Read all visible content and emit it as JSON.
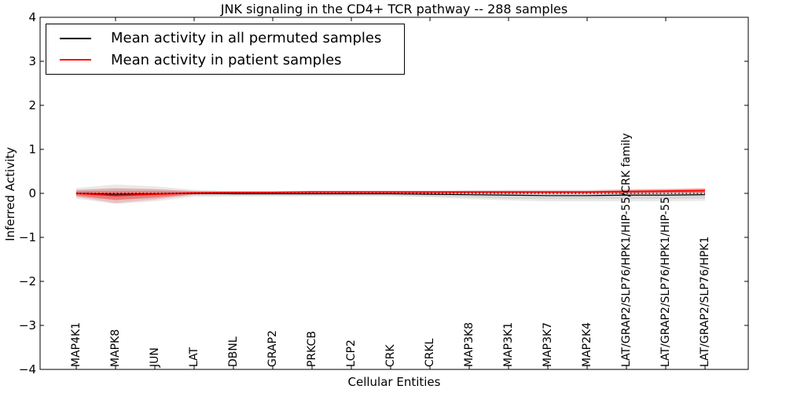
{
  "figure": {
    "title": "JNK signaling in the CD4+ TCR pathway -- 288 samples",
    "xlabel": "Cellular Entities",
    "ylabel": "Inferred Activity"
  },
  "legend": {
    "position": "upper left",
    "items": [
      {
        "label": "Mean activity in all permuted samples",
        "color": "#000000"
      },
      {
        "label": "Mean activity in patient samples",
        "color": "#ff0000"
      }
    ]
  },
  "chart_data": {
    "type": "line",
    "title": "JNK signaling in the CD4+ TCR pathway -- 288 samples",
    "xlabel": "Cellular Entities",
    "ylabel": "Inferred Activity",
    "ylim": [
      -4,
      4
    ],
    "yticks": [
      -4,
      -3,
      -2,
      -1,
      0,
      1,
      2,
      3,
      4
    ],
    "grid": false,
    "legend_position": "upper left",
    "categories": [
      "MAP4K1",
      "MAPK8",
      "JUN",
      "LAT",
      "DBNL",
      "GRAP2",
      "PRKCB",
      "LCP2",
      "CRK",
      "CRKL",
      "MAP3K8",
      "MAP3K1",
      "MAP3K7",
      "MAP2K4",
      "LAT/GRAP2/SLP76/HPK1/HIP-55/CRK family",
      "LAT/GRAP2/SLP76/HPK1/HIP-55",
      "LAT/GRAP2/SLP76/HPK1"
    ],
    "series": [
      {
        "name": "Mean activity in all permuted samples",
        "color": "#000000",
        "style": "solid",
        "width": 1.2,
        "values": [
          0.0,
          -0.02,
          -0.01,
          0.0,
          -0.01,
          -0.01,
          -0.01,
          -0.01,
          -0.01,
          -0.02,
          -0.03,
          -0.04,
          -0.05,
          -0.05,
          -0.04,
          -0.04,
          -0.03
        ]
      },
      {
        "name": "Mean activity in patient samples",
        "color": "#ff0000",
        "style": "solid",
        "width": 1.8,
        "values": [
          0.0,
          -0.05,
          -0.02,
          0.01,
          0.02,
          0.02,
          0.03,
          0.03,
          0.03,
          0.03,
          0.03,
          0.03,
          0.03,
          0.03,
          0.04,
          0.05,
          0.06
        ]
      },
      {
        "name": "zero-baseline",
        "color": "#000000",
        "style": "dotted",
        "width": 1.3,
        "values": [
          0,
          0,
          0,
          0,
          0,
          0,
          0,
          0,
          0,
          0,
          0,
          0,
          0,
          0,
          0,
          0,
          0
        ]
      }
    ],
    "bands": [
      {
        "name": "permuted-spread-outer",
        "center_series": 0,
        "color": "rgba(100,100,100,0.14)",
        "halfwidths": [
          0.12,
          0.22,
          0.17,
          0.08,
          0.06,
          0.06,
          0.06,
          0.06,
          0.06,
          0.07,
          0.1,
          0.12,
          0.13,
          0.13,
          0.14,
          0.14,
          0.14
        ]
      },
      {
        "name": "permuted-spread-inner",
        "center_series": 0,
        "color": "rgba(100,100,100,0.14)",
        "halfwidths": [
          0.07,
          0.13,
          0.1,
          0.05,
          0.04,
          0.04,
          0.04,
          0.04,
          0.04,
          0.05,
          0.06,
          0.08,
          0.08,
          0.08,
          0.09,
          0.09,
          0.09
        ]
      },
      {
        "name": "patient-spread-outer",
        "center_series": 1,
        "color": "rgba(255,0,0,0.18)",
        "halfwidths": [
          0.08,
          0.17,
          0.12,
          0.04,
          0.03,
          0.03,
          0.03,
          0.03,
          0.03,
          0.03,
          0.03,
          0.03,
          0.03,
          0.03,
          0.05,
          0.05,
          0.06
        ]
      },
      {
        "name": "patient-spread-inner",
        "center_series": 1,
        "color": "rgba(255,0,0,0.30)",
        "halfwidths": [
          0.05,
          0.1,
          0.07,
          0.03,
          0.02,
          0.02,
          0.02,
          0.02,
          0.02,
          0.02,
          0.02,
          0.02,
          0.02,
          0.02,
          0.03,
          0.03,
          0.04
        ]
      }
    ]
  }
}
